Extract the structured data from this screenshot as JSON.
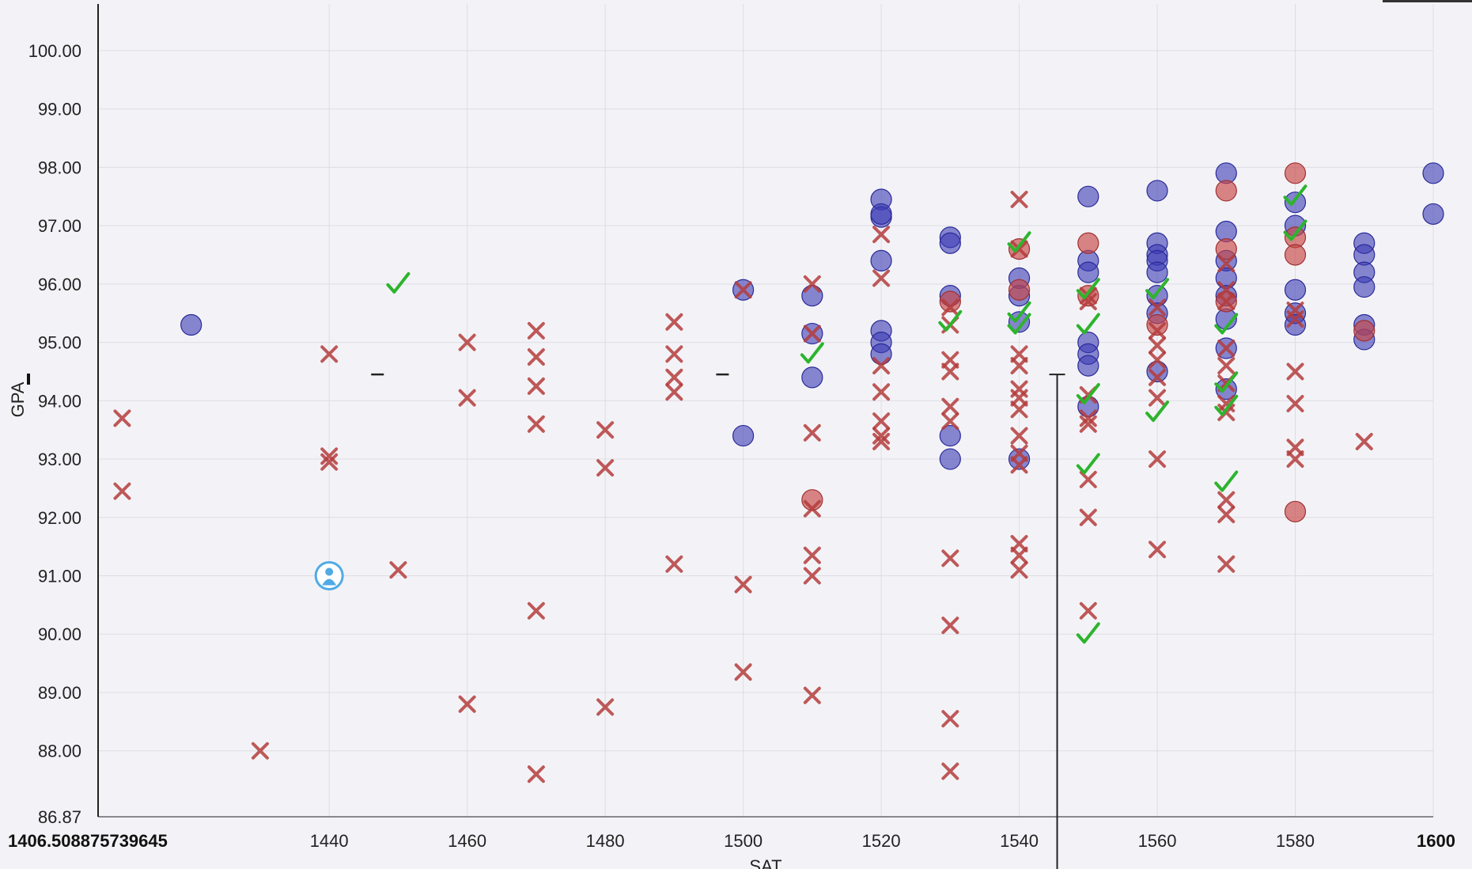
{
  "chart_data": {
    "type": "scatter",
    "xlabel": "SAT",
    "ylabel": "GPA",
    "xlim": [
      1406.508875739645,
      1600
    ],
    "ylim": [
      86.87,
      100.8
    ],
    "grid": true,
    "x_tick_labels": [
      "1406.508875739645",
      "1440",
      "1460",
      "1480",
      "1500",
      "1520",
      "1540",
      "1560",
      "1580",
      "1600"
    ],
    "x_tick_values": [
      1406.508875739645,
      1440,
      1460,
      1480,
      1500,
      1520,
      1540,
      1560,
      1580,
      1600
    ],
    "y_tick_labels": [
      "86.87",
      "88.00",
      "89.00",
      "90.00",
      "91.00",
      "92.00",
      "93.00",
      "94.00",
      "95.00",
      "96.00",
      "97.00",
      "98.00",
      "99.00",
      "100.00"
    ],
    "y_tick_values": [
      86.87,
      88,
      89,
      90,
      91,
      92,
      93,
      94,
      95,
      96,
      97,
      98,
      99,
      100
    ],
    "colors": {
      "accepted_circle": "#3c3cb4",
      "rejected_circle": "#c84646",
      "rejected_x": "#b43c3c",
      "check": "#2db42d",
      "user": "#50aae6",
      "grid": "#dcdce4",
      "axis": "#222222"
    },
    "reference_lines": {
      "x_vertical": 1545.5,
      "y_horizontal": 94.45
    },
    "user_point": {
      "x": 1440,
      "y": 91.0
    },
    "series": [
      {
        "marker": "circle-blue",
        "points": [
          [
            1420,
            95.3
          ],
          [
            1500,
            95.9
          ],
          [
            1500,
            93.4
          ],
          [
            1510,
            95.8
          ],
          [
            1510,
            95.15
          ],
          [
            1510,
            94.4
          ],
          [
            1520,
            97.45
          ],
          [
            1520,
            97.15
          ],
          [
            1520,
            97.2
          ],
          [
            1520,
            96.4
          ],
          [
            1520,
            95.2
          ],
          [
            1520,
            95.0
          ],
          [
            1520,
            94.8
          ],
          [
            1530,
            96.8
          ],
          [
            1530,
            96.7
          ],
          [
            1530,
            95.8
          ],
          [
            1530,
            93.4
          ],
          [
            1530,
            93.0
          ],
          [
            1540,
            96.1
          ],
          [
            1540,
            95.8
          ],
          [
            1540,
            95.35
          ],
          [
            1540,
            93.0
          ],
          [
            1550,
            97.5
          ],
          [
            1550,
            96.4
          ],
          [
            1550,
            96.2
          ],
          [
            1550,
            95.0
          ],
          [
            1550,
            94.8
          ],
          [
            1550,
            94.6
          ],
          [
            1550,
            93.9
          ],
          [
            1560,
            97.6
          ],
          [
            1560,
            96.7
          ],
          [
            1560,
            96.5
          ],
          [
            1560,
            96.4
          ],
          [
            1560,
            96.2
          ],
          [
            1560,
            95.8
          ],
          [
            1560,
            95.5
          ],
          [
            1560,
            94.5
          ],
          [
            1570,
            97.9
          ],
          [
            1570,
            96.9
          ],
          [
            1570,
            96.4
          ],
          [
            1570,
            96.1
          ],
          [
            1570,
            95.8
          ],
          [
            1570,
            95.4
          ],
          [
            1570,
            94.9
          ],
          [
            1570,
            94.2
          ],
          [
            1580,
            97.4
          ],
          [
            1580,
            97.0
          ],
          [
            1580,
            95.9
          ],
          [
            1580,
            95.5
          ],
          [
            1580,
            95.3
          ],
          [
            1590,
            96.7
          ],
          [
            1590,
            96.5
          ],
          [
            1590,
            96.2
          ],
          [
            1590,
            95.95
          ],
          [
            1590,
            95.3
          ],
          [
            1590,
            95.05
          ],
          [
            1600,
            97.9
          ],
          [
            1600,
            97.2
          ]
        ]
      },
      {
        "marker": "circle-red",
        "points": [
          [
            1510,
            92.3
          ],
          [
            1530,
            95.7
          ],
          [
            1540,
            96.6
          ],
          [
            1540,
            95.9
          ],
          [
            1550,
            96.7
          ],
          [
            1550,
            95.8
          ],
          [
            1560,
            95.3
          ],
          [
            1570,
            97.6
          ],
          [
            1570,
            96.6
          ],
          [
            1570,
            95.7
          ],
          [
            1580,
            97.9
          ],
          [
            1580,
            96.8
          ],
          [
            1580,
            96.5
          ],
          [
            1580,
            92.1
          ],
          [
            1590,
            95.2
          ]
        ]
      },
      {
        "marker": "x-red",
        "points": [
          [
            1410,
            93.7
          ],
          [
            1410,
            92.45
          ],
          [
            1430,
            88.0
          ],
          [
            1440,
            94.8
          ],
          [
            1440,
            93.05
          ],
          [
            1440,
            92.95
          ],
          [
            1450,
            91.1
          ],
          [
            1460,
            95.0
          ],
          [
            1460,
            94.05
          ],
          [
            1460,
            88.8
          ],
          [
            1470,
            95.2
          ],
          [
            1470,
            94.75
          ],
          [
            1470,
            94.25
          ],
          [
            1470,
            93.6
          ],
          [
            1470,
            90.4
          ],
          [
            1470,
            87.6
          ],
          [
            1480,
            93.5
          ],
          [
            1480,
            92.85
          ],
          [
            1480,
            88.75
          ],
          [
            1490,
            95.35
          ],
          [
            1490,
            94.8
          ],
          [
            1490,
            94.4
          ],
          [
            1490,
            94.15
          ],
          [
            1490,
            91.2
          ],
          [
            1500,
            95.9
          ],
          [
            1500,
            90.85
          ],
          [
            1500,
            89.35
          ],
          [
            1510,
            96.0
          ],
          [
            1510,
            95.15
          ],
          [
            1510,
            93.45
          ],
          [
            1510,
            92.15
          ],
          [
            1510,
            91.35
          ],
          [
            1510,
            91.0
          ],
          [
            1510,
            88.95
          ],
          [
            1520,
            96.85
          ],
          [
            1520,
            96.1
          ],
          [
            1520,
            94.6
          ],
          [
            1520,
            94.15
          ],
          [
            1520,
            93.65
          ],
          [
            1520,
            93.4
          ],
          [
            1520,
            93.3
          ],
          [
            1530,
            95.6
          ],
          [
            1530,
            95.3
          ],
          [
            1530,
            94.7
          ],
          [
            1530,
            94.5
          ],
          [
            1530,
            93.9
          ],
          [
            1530,
            93.65
          ],
          [
            1530,
            91.3
          ],
          [
            1530,
            90.15
          ],
          [
            1530,
            88.55
          ],
          [
            1530,
            87.65
          ],
          [
            1540,
            97.45
          ],
          [
            1540,
            96.6
          ],
          [
            1540,
            94.8
          ],
          [
            1540,
            94.6
          ],
          [
            1540,
            94.2
          ],
          [
            1540,
            94.05
          ],
          [
            1540,
            93.85
          ],
          [
            1540,
            93.4
          ],
          [
            1540,
            93.1
          ],
          [
            1540,
            92.9
          ],
          [
            1540,
            91.55
          ],
          [
            1540,
            91.35
          ],
          [
            1540,
            91.1
          ],
          [
            1550,
            95.8
          ],
          [
            1550,
            95.7
          ],
          [
            1550,
            94.1
          ],
          [
            1550,
            93.7
          ],
          [
            1550,
            93.6
          ],
          [
            1550,
            92.65
          ],
          [
            1550,
            92.0
          ],
          [
            1550,
            90.4
          ],
          [
            1560,
            95.6
          ],
          [
            1560,
            95.2
          ],
          [
            1560,
            94.95
          ],
          [
            1560,
            94.7
          ],
          [
            1560,
            94.4
          ],
          [
            1560,
            94.05
          ],
          [
            1560,
            93.0
          ],
          [
            1560,
            91.45
          ],
          [
            1570,
            96.35
          ],
          [
            1570,
            95.9
          ],
          [
            1570,
            95.7
          ],
          [
            1570,
            94.9
          ],
          [
            1570,
            94.6
          ],
          [
            1570,
            94.3
          ],
          [
            1570,
            93.95
          ],
          [
            1570,
            93.8
          ],
          [
            1570,
            92.3
          ],
          [
            1570,
            92.05
          ],
          [
            1570,
            91.2
          ],
          [
            1580,
            95.55
          ],
          [
            1580,
            95.4
          ],
          [
            1580,
            94.5
          ],
          [
            1580,
            93.95
          ],
          [
            1580,
            93.2
          ],
          [
            1580,
            93.0
          ],
          [
            1590,
            93.3
          ]
        ]
      },
      {
        "marker": "check-green",
        "points": [
          [
            1450,
            96.0
          ],
          [
            1510,
            94.8
          ],
          [
            1540,
            96.7
          ],
          [
            1540,
            95.5
          ],
          [
            1540,
            95.3
          ],
          [
            1530,
            95.35
          ],
          [
            1550,
            95.9
          ],
          [
            1550,
            95.3
          ],
          [
            1550,
            94.1
          ],
          [
            1550,
            92.9
          ],
          [
            1550,
            90.0
          ],
          [
            1560,
            95.9
          ],
          [
            1560,
            93.8
          ],
          [
            1570,
            95.3
          ],
          [
            1570,
            94.3
          ],
          [
            1570,
            93.9
          ],
          [
            1570,
            92.6
          ],
          [
            1580,
            97.5
          ],
          [
            1580,
            96.9
          ]
        ]
      }
    ]
  }
}
